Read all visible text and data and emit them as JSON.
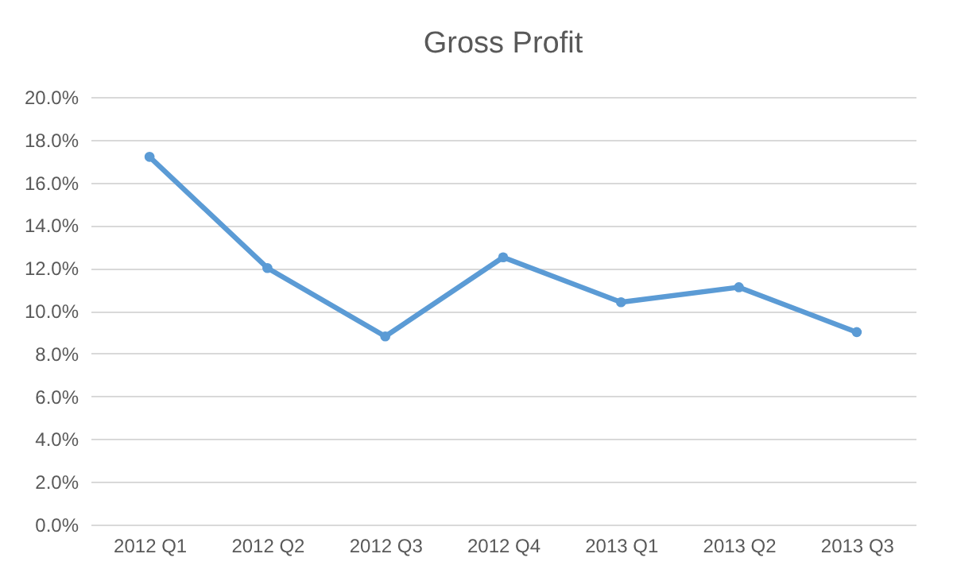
{
  "chart_data": {
    "type": "line",
    "title": "Gross Profit",
    "categories": [
      "2012 Q1",
      "2012 Q2",
      "2012 Q3",
      "2012 Q4",
      "2013 Q1",
      "2013 Q2",
      "2013 Q3"
    ],
    "series": [
      {
        "color": "#5b9bd5",
        "values": [
          17.2,
          12.0,
          8.8,
          12.5,
          10.4,
          11.1,
          9.0
        ]
      }
    ],
    "ylim": [
      0,
      20
    ],
    "yticks": [
      {
        "value": 0,
        "label": "0.0%"
      },
      {
        "value": 2,
        "label": "2.0%"
      },
      {
        "value": 4,
        "label": "4.0%"
      },
      {
        "value": 6,
        "label": "6.0%"
      },
      {
        "value": 8,
        "label": "8.0%"
      },
      {
        "value": 10,
        "label": "10.0%"
      },
      {
        "value": 12,
        "label": "12.0%"
      },
      {
        "value": 14,
        "label": "14.0%"
      },
      {
        "value": 16,
        "label": "16.0%"
      },
      {
        "value": 18,
        "label": "18.0%"
      },
      {
        "value": 20,
        "label": "20.0%"
      }
    ],
    "grid": "y",
    "marker": "circle",
    "line_style": "solid"
  }
}
